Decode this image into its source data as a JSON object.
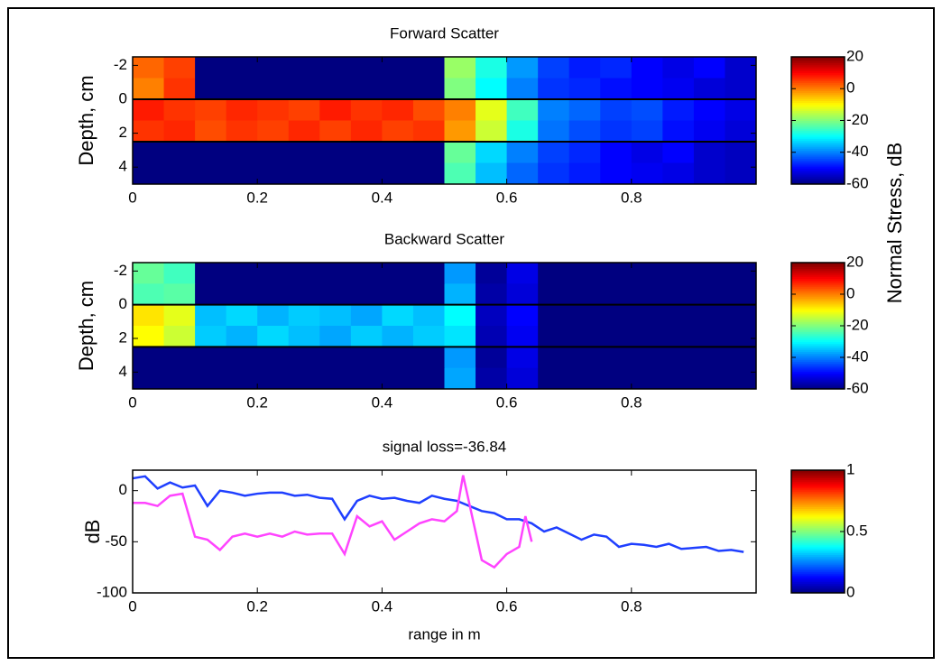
{
  "chart_data": [
    {
      "type": "heatmap",
      "title": "Forward Scatter",
      "ylabel": "Depth, cm",
      "x_bins": [
        0,
        0.05,
        0.1,
        0.15,
        0.2,
        0.25,
        0.3,
        0.35,
        0.4,
        0.45,
        0.5,
        0.55,
        0.6,
        0.65,
        0.7,
        0.75,
        0.8,
        0.85,
        0.9,
        0.95,
        1
      ],
      "y_bins": [
        -2.5,
        -1.25,
        0,
        1.25,
        2.5,
        3.75,
        5
      ],
      "values": [
        [
          2,
          5,
          -60,
          -60,
          -60,
          -60,
          -60,
          -60,
          -60,
          -60,
          -18,
          -28,
          -38,
          -45,
          -48,
          -47,
          -50,
          -52,
          -50,
          -54
        ],
        [
          0,
          6,
          -60,
          -60,
          -60,
          -60,
          -60,
          -60,
          -60,
          -60,
          -20,
          -30,
          -40,
          -46,
          -47,
          -49,
          -50,
          -51,
          -53,
          -54
        ],
        [
          8,
          6,
          5,
          7,
          6,
          5,
          8,
          6,
          7,
          4,
          0,
          -12,
          -25,
          -40,
          -42,
          -45,
          -44,
          -48,
          -50,
          -52
        ],
        [
          6,
          7,
          4,
          6,
          5,
          7,
          5,
          7,
          5,
          6,
          -2,
          -14,
          -28,
          -41,
          -44,
          -46,
          -45,
          -49,
          -51,
          -53
        ],
        [
          -60,
          -60,
          -60,
          -60,
          -60,
          -60,
          -60,
          -60,
          -60,
          -60,
          -22,
          -33,
          -40,
          -45,
          -47,
          -50,
          -52,
          -50,
          -54,
          -55
        ],
        [
          -60,
          -60,
          -60,
          -60,
          -60,
          -60,
          -60,
          -60,
          -60,
          -60,
          -24,
          -35,
          -42,
          -46,
          -48,
          -50,
          -51,
          -52,
          -54,
          -55
        ]
      ],
      "xlim": [
        0,
        1
      ],
      "xticks": [
        0,
        0.2,
        0.4,
        0.6,
        0.8
      ],
      "ylim": [
        -2.5,
        5
      ],
      "yticks": [
        -2,
        0,
        2,
        4
      ],
      "y_reversed": true,
      "layer_boundaries": [
        0,
        2.5
      ],
      "clim": [
        -60,
        20
      ],
      "cticks": [
        20,
        0,
        -20,
        -40,
        -60
      ],
      "colorbar_label": "Normal Stress, dB"
    },
    {
      "type": "heatmap",
      "title": "Backward Scatter",
      "ylabel": "Depth, cm",
      "x_bins": [
        0,
        0.05,
        0.1,
        0.15,
        0.2,
        0.25,
        0.3,
        0.35,
        0.4,
        0.45,
        0.5,
        0.55,
        0.6,
        0.65,
        0.7,
        0.75,
        0.8,
        0.85,
        0.9,
        0.95,
        1
      ],
      "y_bins": [
        -2.5,
        -1.25,
        0,
        1.25,
        2.5,
        3.75,
        5
      ],
      "values": [
        [
          -22,
          -25,
          -60,
          -60,
          -60,
          -60,
          -60,
          -60,
          -60,
          -60,
          -38,
          -58,
          -52,
          -60,
          -60,
          -60,
          -60,
          -60,
          -60,
          -60
        ],
        [
          -24,
          -23,
          -60,
          -60,
          -60,
          -60,
          -60,
          -60,
          -60,
          -60,
          -36,
          -57,
          -53,
          -60,
          -60,
          -60,
          -60,
          -60,
          -60,
          -60
        ],
        [
          -8,
          -12,
          -35,
          -33,
          -36,
          -34,
          -35,
          -37,
          -33,
          -35,
          -30,
          -55,
          -50,
          -60,
          -60,
          -60,
          -60,
          -60,
          -60,
          -60
        ],
        [
          -10,
          -14,
          -34,
          -36,
          -33,
          -35,
          -37,
          -34,
          -36,
          -34,
          -32,
          -56,
          -51,
          -60,
          -60,
          -60,
          -60,
          -60,
          -60,
          -60
        ],
        [
          -60,
          -60,
          -60,
          -60,
          -60,
          -60,
          -60,
          -60,
          -60,
          -60,
          -38,
          -58,
          -52,
          -60,
          -60,
          -60,
          -60,
          -60,
          -60,
          -60
        ],
        [
          -60,
          -60,
          -60,
          -60,
          -60,
          -60,
          -60,
          -60,
          -60,
          -60,
          -37,
          -57,
          -53,
          -60,
          -60,
          -60,
          -60,
          -60,
          -60,
          -60
        ]
      ],
      "xlim": [
        0,
        1
      ],
      "xticks": [
        0,
        0.2,
        0.4,
        0.6,
        0.8
      ],
      "ylim": [
        -2.5,
        5
      ],
      "yticks": [
        -2,
        0,
        2,
        4
      ],
      "y_reversed": true,
      "layer_boundaries": [
        0,
        2.5
      ],
      "clim": [
        -60,
        20
      ],
      "cticks": [
        20,
        0,
        -20,
        -40,
        -60
      ]
    },
    {
      "type": "line",
      "title": "signal loss=-36.84",
      "xlabel": "range in m",
      "ylabel": "dB",
      "series": [
        {
          "color": "#1f3fff",
          "x": [
            0,
            0.02,
            0.04,
            0.06,
            0.08,
            0.1,
            0.12,
            0.14,
            0.16,
            0.18,
            0.2,
            0.22,
            0.24,
            0.26,
            0.28,
            0.3,
            0.32,
            0.34,
            0.36,
            0.38,
            0.4,
            0.42,
            0.44,
            0.46,
            0.48,
            0.5,
            0.52,
            0.54,
            0.56,
            0.58,
            0.6,
            0.62,
            0.64,
            0.66,
            0.68,
            0.7,
            0.72,
            0.74,
            0.76,
            0.78,
            0.8,
            0.82,
            0.84,
            0.86,
            0.88,
            0.9,
            0.92,
            0.94,
            0.96,
            0.98
          ],
          "values": [
            12,
            14,
            2,
            8,
            3,
            5,
            -15,
            0,
            -2,
            -5,
            -3,
            -2,
            -2,
            -5,
            -4,
            -7,
            -8,
            -28,
            -10,
            -5,
            -8,
            -7,
            -10,
            -12,
            -5,
            -8,
            -10,
            -15,
            -20,
            -22,
            -28,
            -28,
            -32,
            -40,
            -36,
            -42,
            -48,
            -43,
            -45,
            -55,
            -52,
            -53,
            -55,
            -52,
            -57,
            -56,
            -55,
            -59,
            -58,
            -60
          ]
        },
        {
          "color": "#ff44ff",
          "x": [
            0,
            0.02,
            0.04,
            0.06,
            0.08,
            0.1,
            0.12,
            0.14,
            0.16,
            0.18,
            0.2,
            0.22,
            0.24,
            0.26,
            0.28,
            0.3,
            0.32,
            0.34,
            0.36,
            0.38,
            0.4,
            0.42,
            0.44,
            0.46,
            0.48,
            0.5,
            0.52,
            0.53,
            0.56,
            0.58,
            0.6,
            0.62,
            0.63,
            0.64
          ],
          "values": [
            -12,
            -12,
            -15,
            -5,
            -3,
            -45,
            -48,
            -58,
            -45,
            -42,
            -45,
            -42,
            -45,
            -40,
            -43,
            -42,
            -42,
            -62,
            -25,
            -35,
            -30,
            -48,
            -40,
            -32,
            -28,
            -30,
            -20,
            15,
            -68,
            -75,
            -62,
            -55,
            -25,
            -50
          ]
        }
      ],
      "xlim": [
        0,
        1
      ],
      "xticks": [
        0,
        0.2,
        0.4,
        0.6,
        0.8
      ],
      "ylim": [
        -100,
        20
      ],
      "yticks": [
        0,
        -50,
        -100
      ],
      "clim": [
        0,
        1
      ],
      "cticks": [
        1,
        0.5,
        0
      ]
    }
  ]
}
